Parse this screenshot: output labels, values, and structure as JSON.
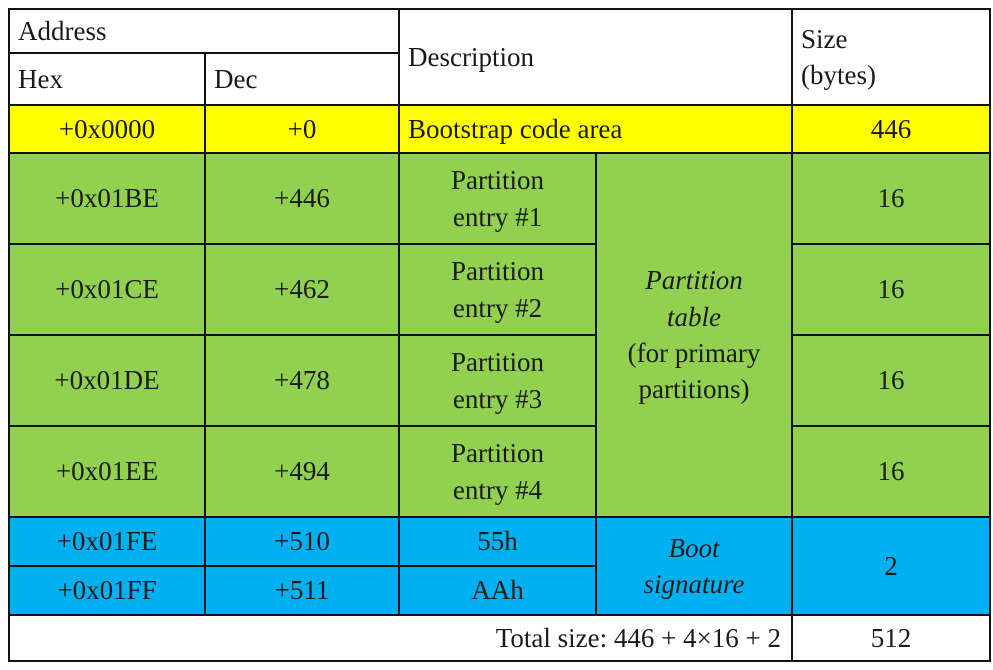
{
  "header": {
    "address": "Address",
    "hex": "Hex",
    "dec": "Dec",
    "description": "Description",
    "size": "Size",
    "size_unit": "(bytes)"
  },
  "rows": [
    {
      "hex": "+0x0000",
      "dec": "+0",
      "desc": "Bootstrap code area",
      "size": "446"
    },
    {
      "hex": "+0x01BE",
      "dec": "+446",
      "desc1": "Partition",
      "desc2": "entry #1",
      "size": "16"
    },
    {
      "hex": "+0x01CE",
      "dec": "+462",
      "desc1": "Partition",
      "desc2": "entry #2",
      "size": "16"
    },
    {
      "hex": "+0x01DE",
      "dec": "+478",
      "desc1": "Partition",
      "desc2": "entry #3",
      "size": "16"
    },
    {
      "hex": "+0x01EE",
      "dec": "+494",
      "desc1": "Partition",
      "desc2": "entry #4",
      "size": "16"
    },
    {
      "hex": "+0x01FE",
      "dec": "+510",
      "desc": "55h"
    },
    {
      "hex": "+0x01FF",
      "dec": "+511",
      "desc": "AAh"
    }
  ],
  "partition_group": {
    "line1": "Partition",
    "line2": "table",
    "line3": "(for primary",
    "line4": "partitions)"
  },
  "boot_group": {
    "line1": "Boot",
    "line2": "signature",
    "size": "2"
  },
  "total": {
    "label": "Total size: 446 + 4×16 + 2",
    "size": "512"
  },
  "colors": {
    "yellow": "#ffff00",
    "green": "#92d050",
    "blue": "#00b0f0"
  }
}
